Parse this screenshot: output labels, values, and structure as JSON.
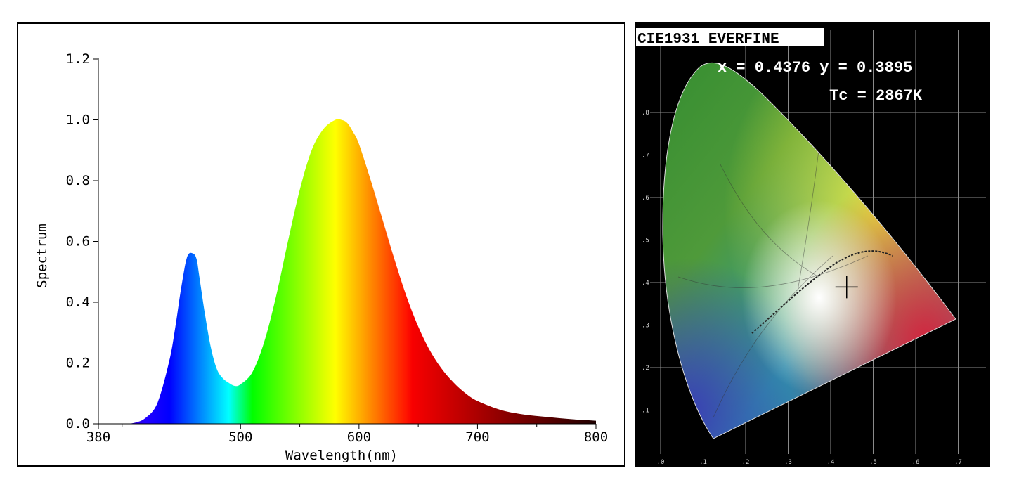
{
  "chart_data": [
    {
      "type": "area",
      "xlabel": "Wavelength(nm)",
      "ylabel": "Spectrum",
      "xlim": [
        380,
        800
      ],
      "ylim": [
        0,
        1.2
      ],
      "x_ticks": [
        380,
        500,
        600,
        700,
        800
      ],
      "y_ticks": [
        "0.0",
        "0.2",
        "0.4",
        "0.6",
        "0.8",
        "1.0",
        "1.2"
      ],
      "fill": "visible-spectrum gradient by wavelength",
      "series": [
        {
          "x": [
            380,
            400,
            410,
            420,
            430,
            440,
            445,
            450,
            455,
            460,
            463,
            465,
            470,
            475,
            480,
            485,
            490,
            495,
            500,
            510,
            520,
            530,
            540,
            550,
            560,
            570,
            580,
            585,
            590,
            595,
            600,
            610,
            620,
            630,
            640,
            650,
            660,
            670,
            680,
            690,
            700,
            720,
            740,
            760,
            780,
            800
          ],
          "y": [
            0.0,
            0.0,
            0.003,
            0.02,
            0.07,
            0.21,
            0.32,
            0.45,
            0.55,
            0.56,
            0.54,
            0.49,
            0.36,
            0.25,
            0.18,
            0.15,
            0.135,
            0.125,
            0.13,
            0.17,
            0.27,
            0.42,
            0.6,
            0.77,
            0.9,
            0.97,
            1.0,
            1.0,
            0.99,
            0.96,
            0.92,
            0.8,
            0.67,
            0.54,
            0.42,
            0.32,
            0.24,
            0.18,
            0.135,
            0.1,
            0.075,
            0.045,
            0.03,
            0.022,
            0.015,
            0.01
          ]
        }
      ]
    },
    {
      "type": "scatter",
      "title": "CIE1931 EVERFINE",
      "annotations": [
        "x = 0.4376 y = 0.3895",
        "Tc = 2867K"
      ],
      "x_ticks": [
        ".0",
        ".1",
        ".2",
        ".3",
        ".4",
        ".5",
        ".6",
        ".7"
      ],
      "y_ticks": [
        ".1",
        ".2",
        ".3",
        ".4",
        ".5",
        ".6",
        ".7",
        ".8"
      ],
      "series": [
        {
          "x": [
            0.4376
          ],
          "y": [
            0.3895
          ]
        }
      ]
    }
  ]
}
